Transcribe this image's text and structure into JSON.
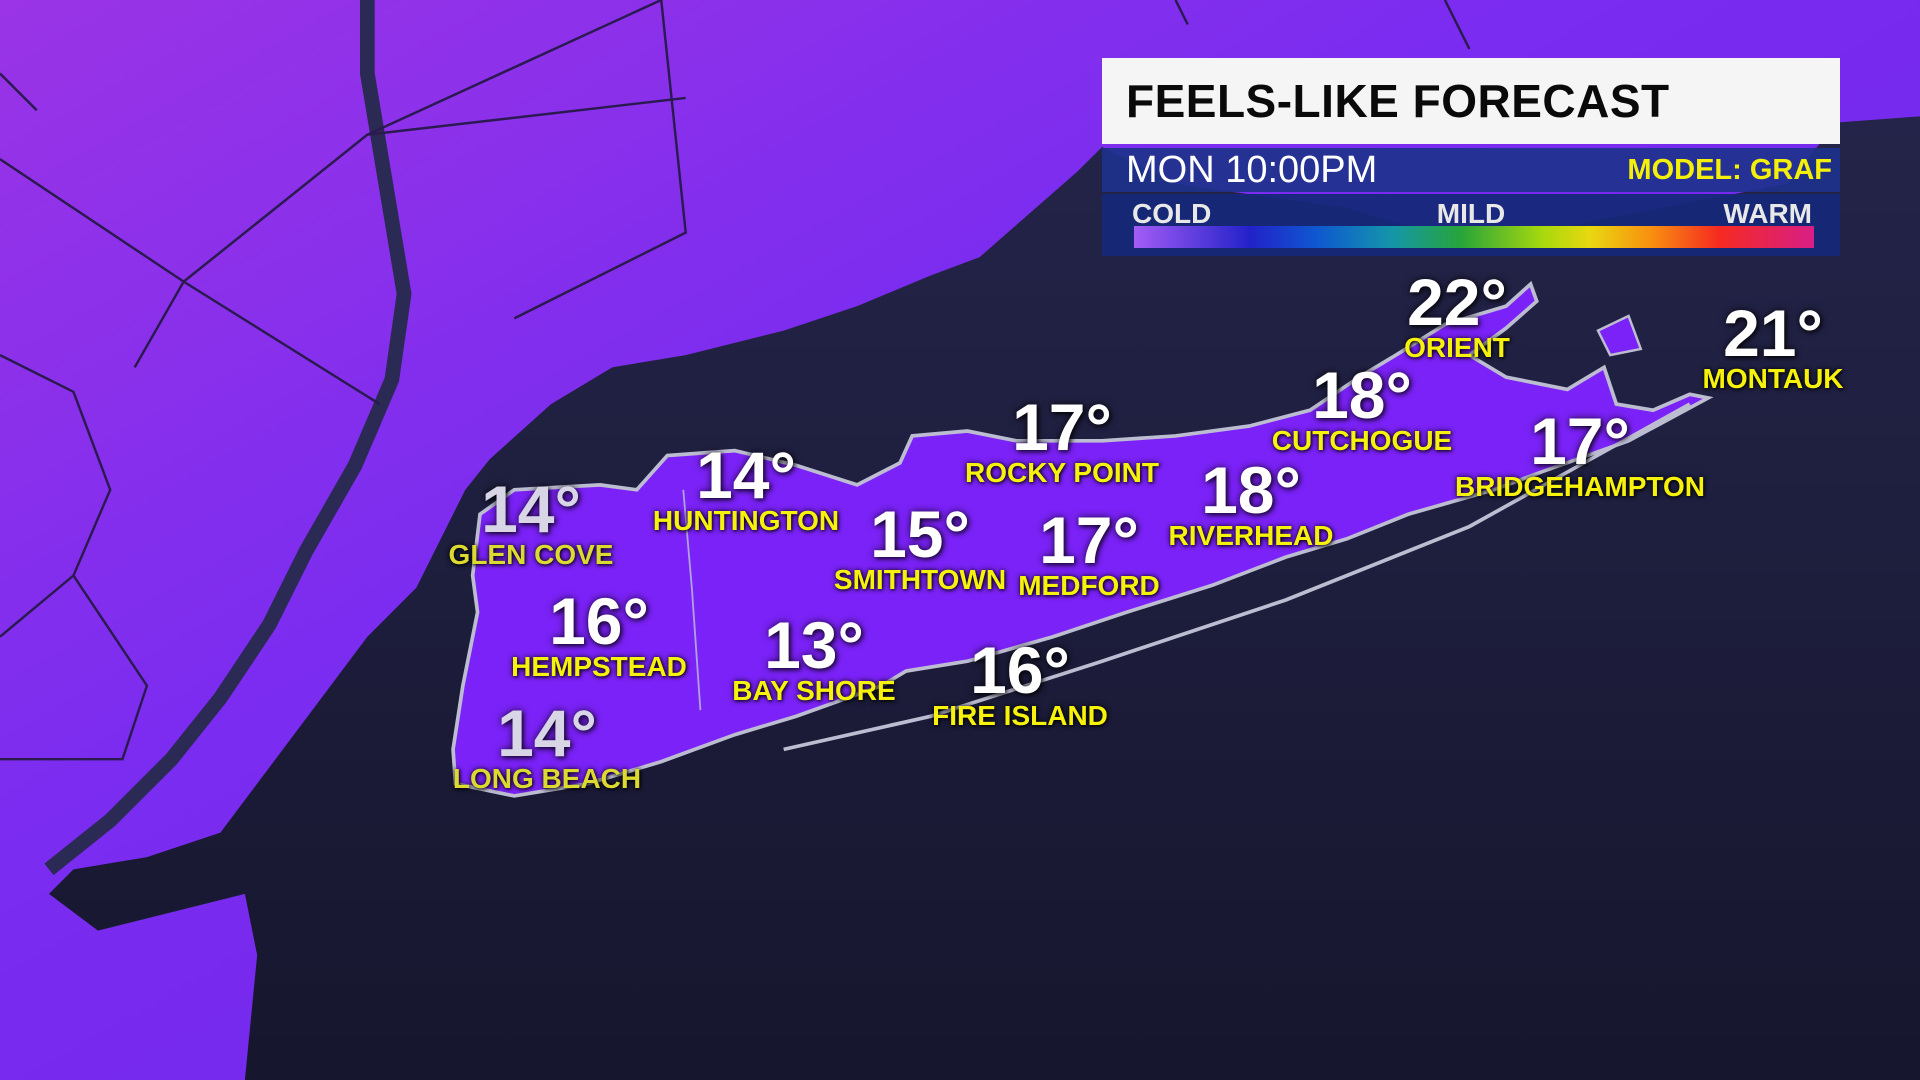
{
  "panel": {
    "title": "FEELS-LIKE FORECAST",
    "time": "MON 10:00PM",
    "model": "MODEL: GRAF",
    "scale": {
      "cold": "COLD",
      "mild": "MILD",
      "warm": "WARM"
    }
  },
  "colors": {
    "land": "#7a2cf0",
    "ocean": "#1c1c3e",
    "label": "#f7f20c",
    "temp": "#ffffff"
  },
  "locations": [
    {
      "name": "GLEN COVE",
      "temp": "14°"
    },
    {
      "name": "HUNTINGTON",
      "temp": "14°"
    },
    {
      "name": "ROCKY POINT",
      "temp": "17°"
    },
    {
      "name": "SMITHTOWN",
      "temp": "15°"
    },
    {
      "name": "MEDFORD",
      "temp": "17°"
    },
    {
      "name": "RIVERHEAD",
      "temp": "18°"
    },
    {
      "name": "CUTCHOGUE",
      "temp": "18°"
    },
    {
      "name": "ORIENT",
      "temp": "22°"
    },
    {
      "name": "BRIDGEHAMPTON",
      "temp": "17°"
    },
    {
      "name": "MONTAUK",
      "temp": "21°"
    },
    {
      "name": "HEMPSTEAD",
      "temp": "16°"
    },
    {
      "name": "BAY SHORE",
      "temp": "13°"
    },
    {
      "name": "FIRE ISLAND",
      "temp": "16°"
    },
    {
      "name": "LONG BEACH",
      "temp": "14°"
    }
  ]
}
